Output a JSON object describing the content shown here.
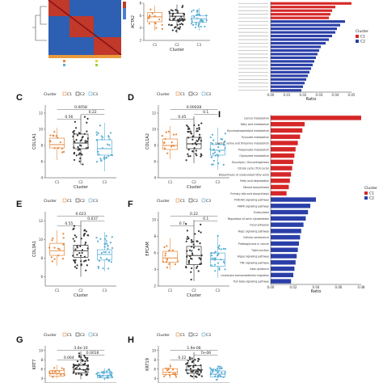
{
  "colors": {
    "C1": "#e6873a",
    "C2": "#333333",
    "C3": "#5aaed6",
    "bar_c1": "#d62728",
    "bar_c2": "#2b3fa8"
  },
  "legend": {
    "title": "Cluster",
    "items": [
      "C1",
      "C2",
      "C3"
    ]
  },
  "x_axis": {
    "label": "Cluster",
    "categories": [
      "C1",
      "C2",
      "C3"
    ]
  },
  "panels": [
    {
      "id": "B",
      "letter": "",
      "ylabel": "ACTA2",
      "ylim": [
        2,
        8
      ],
      "yticks": [
        2,
        4,
        6,
        8
      ],
      "pvals": [],
      "medians": [
        5.8,
        5.9,
        5.5
      ],
      "q1": [
        5.0,
        5.2,
        4.9
      ],
      "q3": [
        6.5,
        6.4,
        6.0
      ],
      "lo": [
        3.6,
        3.2,
        3.6
      ],
      "hi": [
        7.6,
        7.8,
        7.2
      ]
    },
    {
      "id": "C",
      "letter": "C",
      "ylabel": "COL1A1",
      "ylim": [
        4,
        13
      ],
      "yticks": [
        4,
        6,
        8,
        10,
        12
      ],
      "pvals": [
        "0.0058",
        "0.22",
        "0.56"
      ],
      "medians": [
        8.1,
        8.3,
        7.6
      ],
      "q1": [
        7.7,
        7.6,
        6.8
      ],
      "q3": [
        8.9,
        9.4,
        8.7
      ],
      "lo": [
        6.2,
        5.6,
        4.8
      ],
      "hi": [
        10.2,
        11.8,
        10.8
      ]
    },
    {
      "id": "D",
      "letter": "D",
      "ylabel": "COL1A2",
      "ylim": [
        4,
        13
      ],
      "yticks": [
        4,
        6,
        8,
        10,
        12
      ],
      "pvals": [
        "0.00028",
        "0.1",
        "0.45"
      ],
      "medians": [
        8.0,
        8.2,
        7.4
      ],
      "q1": [
        7.5,
        7.6,
        6.8
      ],
      "q3": [
        8.8,
        9.0,
        8.1
      ],
      "lo": [
        6.3,
        5.8,
        5.0
      ],
      "hi": [
        10.4,
        11.6,
        10.2
      ]
    },
    {
      "id": "E",
      "letter": "E",
      "ylabel": "COL3A1",
      "ylim": [
        5,
        13
      ],
      "yticks": [
        6,
        8,
        10,
        12
      ],
      "pvals": [
        "0.023",
        "0.037",
        "0.55"
      ],
      "medians": [
        8.8,
        8.8,
        8.4
      ],
      "q1": [
        8.3,
        8.1,
        7.8
      ],
      "q3": [
        9.6,
        9.4,
        8.9
      ],
      "lo": [
        7.2,
        6.0,
        6.6
      ],
      "hi": [
        11.0,
        12.0,
        10.8
      ]
    },
    {
      "id": "F",
      "letter": "F",
      "ylabel": "EPCAM",
      "ylim": [
        2,
        11
      ],
      "yticks": [
        2,
        4,
        6,
        8,
        10
      ],
      "pvals": [
        "0.22",
        "0.1",
        "0.7"
      ],
      "medians": [
        5.4,
        5.7,
        5.2
      ],
      "q1": [
        4.9,
        4.6,
        4.4
      ],
      "q3": [
        6.2,
        6.8,
        6.0
      ],
      "lo": [
        4.0,
        2.6,
        3.0
      ],
      "hi": [
        7.8,
        10.0,
        8.2
      ]
    },
    {
      "id": "G",
      "letter": "G",
      "ylabel": "KRT7",
      "ylim": [
        3,
        11
      ],
      "yticks": [
        4,
        6,
        8,
        10
      ],
      "pvals": [
        "3.0e-10",
        "0.0016",
        "0.064"
      ],
      "medians": [
        5.0,
        5.9,
        4.6
      ],
      "q1": [
        4.5,
        5.2,
        4.1
      ],
      "q3": [
        5.7,
        6.8,
        5.2
      ],
      "lo": [
        4.0,
        3.8,
        3.6
      ],
      "hi": [
        6.9,
        9.8,
        6.2
      ]
    },
    {
      "id": "H",
      "letter": "H",
      "ylabel": "KRT19",
      "ylim": [
        3,
        11
      ],
      "yticks": [
        4,
        6,
        8,
        10
      ],
      "pvals": [
        "1.9e-06",
        "7e-06",
        "0.22"
      ],
      "medians": [
        5.3,
        5.8,
        4.9
      ],
      "q1": [
        4.8,
        5.1,
        4.3
      ],
      "q3": [
        6.1,
        6.7,
        5.6
      ],
      "lo": [
        4.0,
        3.8,
        3.6
      ],
      "hi": [
        7.2,
        9.6,
        6.8
      ]
    }
  ],
  "chart_data": [
    {
      "type": "bar",
      "id": "top-right",
      "xlabel": "Ratio",
      "xticks": [
        "0.00",
        "0.01",
        "0.02",
        "0.03",
        "0.04",
        "0.05"
      ],
      "legend_title": "Cluster",
      "series_names": [
        "C1",
        "C2"
      ],
      "bars": [
        {
          "series": "C1",
          "value": 0.05
        },
        {
          "series": "C1",
          "value": 0.04
        },
        {
          "series": "C1",
          "value": 0.038
        },
        {
          "series": "C1",
          "value": 0.037
        },
        {
          "series": "C1",
          "value": 0.036
        },
        {
          "series": "C2",
          "value": 0.046
        },
        {
          "series": "C2",
          "value": 0.043
        },
        {
          "series": "C2",
          "value": 0.041
        },
        {
          "series": "C2",
          "value": 0.04
        },
        {
          "series": "C2",
          "value": 0.038
        },
        {
          "series": "C2",
          "value": 0.036
        },
        {
          "series": "C2",
          "value": 0.034
        },
        {
          "series": "C2",
          "value": 0.031
        },
        {
          "series": "C2",
          "value": 0.03
        },
        {
          "series": "C2",
          "value": 0.029
        },
        {
          "series": "C2",
          "value": 0.028
        },
        {
          "series": "C2",
          "value": 0.027
        },
        {
          "series": "C2",
          "value": 0.026
        },
        {
          "series": "C2",
          "value": 0.025
        },
        {
          "series": "C2",
          "value": 0.024
        },
        {
          "series": "C2",
          "value": 0.023
        },
        {
          "series": "C2",
          "value": 0.022
        },
        {
          "series": "C2",
          "value": 0.021
        },
        {
          "series": "C2",
          "value": 0.02
        },
        {
          "series": "C2",
          "value": 0.019
        }
      ]
    },
    {
      "type": "bar",
      "id": "I",
      "letter": "I",
      "xlabel": "Ratio",
      "xticks": [
        "0.00",
        "0.02",
        "0.04",
        "0.06",
        "0.08"
      ],
      "legend_title": "Cluster",
      "series_names": [
        "C1",
        "C2"
      ],
      "bars": [
        {
          "series": "C1",
          "label": "Cancer metabolism",
          "value": 0.08
        },
        {
          "series": "C1",
          "label": "Fatty acid metabolism",
          "value": 0.03
        },
        {
          "series": "C1",
          "label": "Glycerophospholipid metabolism",
          "value": 0.028
        },
        {
          "series": "C1",
          "label": "Pyruvate metabolism",
          "value": 0.026
        },
        {
          "series": "C1",
          "label": "Glycine, serine and threonine metabolism",
          "value": 0.024
        },
        {
          "series": "C1",
          "label": "Propanoate metabolism",
          "value": 0.022
        },
        {
          "series": "C1",
          "label": "Glyoxylate metabolism",
          "value": 0.021
        },
        {
          "series": "C1",
          "label": "Glycolysis / Gluconeogenesis",
          "value": 0.02
        },
        {
          "series": "C1",
          "label": "Citrate cycle (TCA cycle)",
          "value": 0.019
        },
        {
          "series": "C1",
          "label": "Biosynthesis of unsaturated fatty acids",
          "value": 0.018
        },
        {
          "series": "C1",
          "label": "Fatty acid degradation",
          "value": 0.017
        },
        {
          "series": "C1",
          "label": "Steroid biosynthesis",
          "value": 0.016
        },
        {
          "series": "C1",
          "label": "Primary bile acid biosynthesis",
          "value": 0.014
        },
        {
          "series": "C2",
          "label": "PI3K-Akt signaling pathway",
          "value": 0.04
        },
        {
          "series": "C2",
          "label": "MAPK signaling pathway",
          "value": 0.035
        },
        {
          "series": "C2",
          "label": "Endocytosis",
          "value": 0.033
        },
        {
          "series": "C2",
          "label": "Regulation of actin cytoskeleton",
          "value": 0.031
        },
        {
          "series": "C2",
          "label": "Focal adhesion",
          "value": 0.029
        },
        {
          "series": "C2",
          "label": "Rap1 signaling pathway",
          "value": 0.027
        },
        {
          "series": "C2",
          "label": "Cellular senescence",
          "value": 0.026
        },
        {
          "series": "C2",
          "label": "Proteoglycans in cancer",
          "value": 0.025
        },
        {
          "series": "C2",
          "label": "Tight junction",
          "value": 0.024
        },
        {
          "series": "C2",
          "label": "Hippo signaling pathway",
          "value": 0.023
        },
        {
          "series": "C2",
          "label": "TNF signaling pathway",
          "value": 0.022
        },
        {
          "series": "C2",
          "label": "Axon guidance",
          "value": 0.021
        },
        {
          "series": "C2",
          "label": "Leukocyte transendothelial migration",
          "value": 0.02
        },
        {
          "series": "C2",
          "label": "TGF-beta signaling pathway",
          "value": 0.018
        }
      ]
    }
  ]
}
